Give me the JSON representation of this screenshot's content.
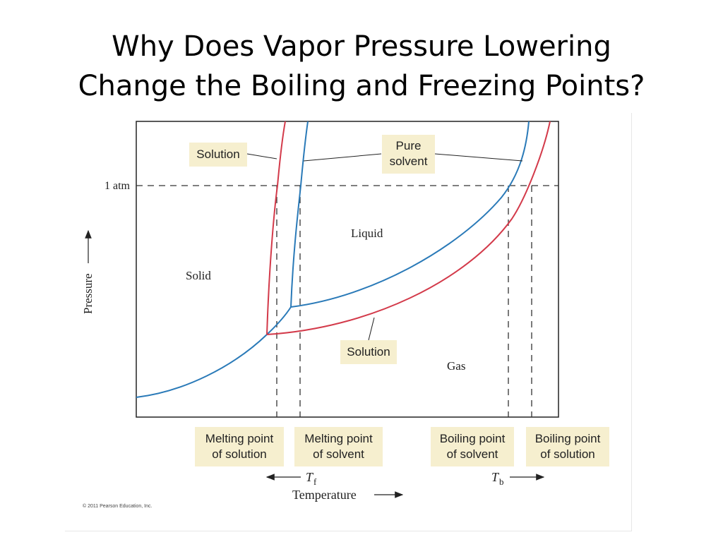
{
  "title": {
    "line1": "Why Does Vapor Pressure Lowering",
    "line2": "Change the Boiling and Freezing Points?"
  },
  "diagram": {
    "axis_y_label": "Pressure",
    "axis_x_label": "Temperature",
    "atm_label": "1 atm",
    "regions": {
      "solid": "Solid",
      "liquid": "Liquid",
      "gas": "Gas"
    },
    "callouts": {
      "solution_top": "Solution",
      "pure_solvent_line1": "Pure",
      "pure_solvent_line2": "solvent",
      "solution_bottom": "Solution"
    },
    "points": [
      {
        "line1": "Melting point",
        "line2": "of solution"
      },
      {
        "line1": "Melting point",
        "line2": "of solvent"
      },
      {
        "line1": "Boiling point",
        "line2": "of solvent"
      },
      {
        "line1": "Boiling point",
        "line2": "of solution"
      }
    ],
    "tf_symbol": "T",
    "tf_sub": "f",
    "tb_symbol": "T",
    "tb_sub": "b",
    "colors": {
      "solvent_curve": "#2a7ab8",
      "solution_curve": "#d33a4a",
      "label_bg": "#f6efcf"
    }
  },
  "copyright": "© 2011 Pearson Education, Inc."
}
